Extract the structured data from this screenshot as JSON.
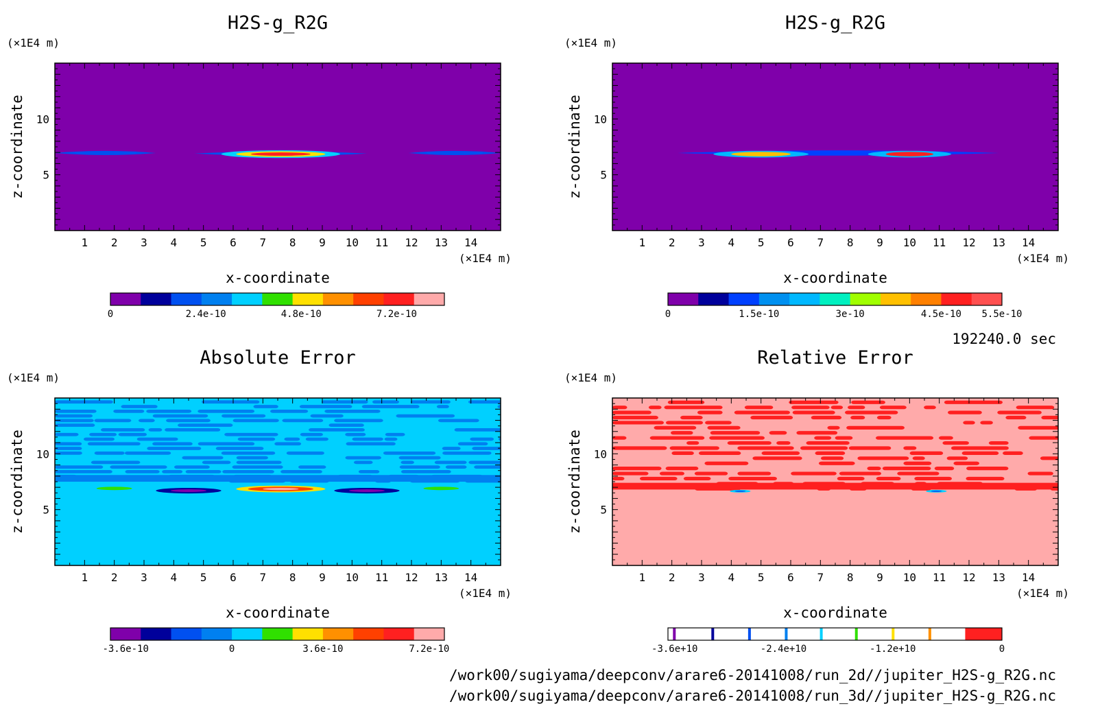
{
  "figure": {
    "time_label": "192240.0 sec",
    "file_paths": [
      "/work00/sugiyama/deepconv/arare6-20141008/run_2d//jupiter_H2S-g_R2G.nc",
      "/work00/sugiyama/deepconv/arare6-20141008/run_3d//jupiter_H2S-g_R2G.nc"
    ]
  },
  "chart_data": [
    {
      "type": "heatmap",
      "title": "H2S-g_R2G",
      "xlabel": "x-coordinate",
      "ylabel": "z-coordinate",
      "x_unit": "(×1E4 m)",
      "y_unit": "(×1E4 m)",
      "xlim": [
        0,
        15
      ],
      "ylim": [
        0,
        15
      ],
      "x_ticks": [
        1,
        2,
        3,
        4,
        5,
        6,
        7,
        8,
        9,
        10,
        11,
        12,
        13,
        14
      ],
      "y_ticks": [
        5,
        10
      ],
      "background": "#7f00aa",
      "colorbar": {
        "colors": [
          "#7f00aa",
          "#00009b",
          "#0050f0",
          "#0080f0",
          "#00d0ff",
          "#30e000",
          "#ffe000",
          "#ff9000",
          "#ff4000",
          "#ff2020",
          "#ffaaaa"
        ],
        "tick_labels": [
          "0",
          "2.4e-10",
          "4.8e-10",
          "7.2e-10"
        ],
        "tick_fractions": [
          0,
          0.2857,
          0.5714,
          0.8571
        ]
      },
      "features": [
        {
          "kind": "band",
          "x": [
            0,
            3.4
          ],
          "z": [
            6.7,
            7.2
          ],
          "color": "#0050f0",
          "level": 1.5e-10
        },
        {
          "kind": "band",
          "x": [
            4.7,
            10.5
          ],
          "z": [
            6.6,
            7.2
          ],
          "color": "#0050f0",
          "level": 1.5e-10
        },
        {
          "kind": "band",
          "x": [
            11.9,
            15
          ],
          "z": [
            6.7,
            7.2
          ],
          "color": "#0050f0",
          "level": 1.5e-10
        },
        {
          "kind": "blob",
          "center": [
            7.6,
            6.85
          ],
          "half_width": [
            2.0,
            0.35
          ],
          "color": "#00d0ff"
        },
        {
          "kind": "blob",
          "center": [
            7.6,
            6.85
          ],
          "half_width": [
            1.5,
            0.25
          ],
          "color": "#ffe000"
        },
        {
          "kind": "blob",
          "center": [
            7.6,
            6.85
          ],
          "half_width": [
            1.0,
            0.15
          ],
          "color": "#ff2020"
        }
      ]
    },
    {
      "type": "heatmap",
      "title": "H2S-g_R2G",
      "xlabel": "x-coordinate",
      "ylabel": "z-coordinate",
      "x_unit": "(×1E4 m)",
      "y_unit": "(×1E4 m)",
      "xlim": [
        0,
        15
      ],
      "ylim": [
        0,
        15
      ],
      "x_ticks": [
        1,
        2,
        3,
        4,
        5,
        6,
        7,
        8,
        9,
        10,
        11,
        12,
        13,
        14
      ],
      "y_ticks": [
        5,
        10
      ],
      "background": "#7f00aa",
      "colorbar": {
        "colors": [
          "#7f00aa",
          "#00009b",
          "#0040ff",
          "#0090f0",
          "#00b8ff",
          "#00f0c0",
          "#a0ff00",
          "#ffc000",
          "#ff8000",
          "#ff2020",
          "#ff5050"
        ],
        "tick_labels": [
          "0",
          "1.5e-10",
          "3e-10",
          "4.5e-10",
          "5.5e-10"
        ],
        "tick_fractions": [
          0,
          0.2727,
          0.5454,
          0.8181,
          1.0
        ]
      },
      "features": [
        {
          "kind": "band",
          "x": [
            2.2,
            13.0
          ],
          "z": [
            6.6,
            7.3
          ],
          "color": "#0040ff",
          "level": 1e-10
        },
        {
          "kind": "blob",
          "center": [
            5.0,
            6.85
          ],
          "half_width": [
            1.6,
            0.3
          ],
          "color": "#00b8ff"
        },
        {
          "kind": "blob",
          "center": [
            5.0,
            6.85
          ],
          "half_width": [
            1.0,
            0.2
          ],
          "color": "#ffc000"
        },
        {
          "kind": "blob",
          "center": [
            10.0,
            6.85
          ],
          "half_width": [
            1.4,
            0.3
          ],
          "color": "#00b8ff"
        },
        {
          "kind": "blob",
          "center": [
            10.0,
            6.85
          ],
          "half_width": [
            0.8,
            0.2
          ],
          "color": "#ff2020"
        }
      ]
    },
    {
      "type": "heatmap",
      "title": "Absolute Error",
      "xlabel": "x-coordinate",
      "ylabel": "z-coordinate",
      "x_unit": "(×1E4 m)",
      "y_unit": "(×1E4 m)",
      "xlim": [
        0,
        15
      ],
      "ylim": [
        0,
        15
      ],
      "x_ticks": [
        1,
        2,
        3,
        4,
        5,
        6,
        7,
        8,
        9,
        10,
        11,
        12,
        13,
        14
      ],
      "y_ticks": [
        5,
        10
      ],
      "background": "#00d0ff",
      "colorbar": {
        "colors": [
          "#7f00aa",
          "#00009b",
          "#0050f0",
          "#0080f0",
          "#00d0ff",
          "#30e000",
          "#ffe000",
          "#ff9000",
          "#ff4000",
          "#ff2020",
          "#ffaaaa"
        ],
        "tick_labels": [
          "-3.6e-10",
          "0",
          "3.6e-10",
          "7.2e-10"
        ],
        "tick_fractions": [
          0.0455,
          0.3636,
          0.6364,
          0.9545
        ]
      },
      "features": [
        {
          "kind": "stripes",
          "z": [
            7.5,
            15
          ],
          "color": "#0080f0"
        },
        {
          "kind": "blob",
          "center": [
            2.0,
            6.9
          ],
          "half_width": [
            0.6,
            0.15
          ],
          "color": "#30e000"
        },
        {
          "kind": "blob",
          "center": [
            13.0,
            6.9
          ],
          "half_width": [
            0.6,
            0.15
          ],
          "color": "#30e000"
        },
        {
          "kind": "blob",
          "center": [
            4.5,
            6.7
          ],
          "half_width": [
            1.1,
            0.25
          ],
          "color": "#00009b"
        },
        {
          "kind": "blob",
          "center": [
            4.5,
            6.7
          ],
          "half_width": [
            0.6,
            0.12
          ],
          "color": "#7f00aa"
        },
        {
          "kind": "blob",
          "center": [
            10.5,
            6.7
          ],
          "half_width": [
            1.1,
            0.25
          ],
          "color": "#00009b"
        },
        {
          "kind": "blob",
          "center": [
            10.5,
            6.7
          ],
          "half_width": [
            0.6,
            0.12
          ],
          "color": "#7f00aa"
        },
        {
          "kind": "blob",
          "center": [
            7.6,
            6.85
          ],
          "half_width": [
            1.5,
            0.3
          ],
          "color": "#ffe000"
        },
        {
          "kind": "blob",
          "center": [
            7.6,
            6.85
          ],
          "half_width": [
            1.1,
            0.2
          ],
          "color": "#ff4000"
        },
        {
          "kind": "blob",
          "center": [
            7.6,
            6.85
          ],
          "half_width": [
            0.6,
            0.1
          ],
          "color": "#ffaaaa"
        }
      ]
    },
    {
      "type": "heatmap",
      "title": "Relative Error",
      "xlabel": "x-coordinate",
      "ylabel": "z-coordinate",
      "x_unit": "(×1E4 m)",
      "y_unit": "(×1E4 m)",
      "xlim": [
        0,
        15
      ],
      "ylim": [
        0,
        15
      ],
      "x_ticks": [
        1,
        2,
        3,
        4,
        5,
        6,
        7,
        8,
        9,
        10,
        11,
        12,
        13,
        14
      ],
      "y_ticks": [
        5,
        10
      ],
      "background": "#ffaaaa",
      "colorbar": {
        "colors": [
          "#7f00aa",
          "#00009b",
          "#0050f0",
          "#0080f0",
          "#00d0ff",
          "#30e000",
          "#ffe000",
          "#ff9000",
          "#ff4000",
          "#ff2020"
        ],
        "line_positions": [
          0.015,
          0.13,
          0.24,
          0.35,
          0.455,
          0.56,
          0.67,
          0.78
        ],
        "tail_fraction": 0.89,
        "tail_color": "#ff2020",
        "tick_labels": [
          "-3.6e+10",
          "-2.4e+10",
          "-1.2e+10",
          "0"
        ],
        "tick_fractions": [
          0.02,
          0.346,
          0.673,
          1.0
        ]
      },
      "features": [
        {
          "kind": "stripes",
          "z": [
            6.8,
            15
          ],
          "color": "#ff2020"
        },
        {
          "kind": "blob",
          "center": [
            4.3,
            6.65
          ],
          "half_width": [
            0.35,
            0.12
          ],
          "color": "#00d0ff"
        },
        {
          "kind": "blob",
          "center": [
            4.3,
            6.65
          ],
          "half_width": [
            0.18,
            0.06
          ],
          "color": "#0050f0"
        },
        {
          "kind": "blob",
          "center": [
            10.9,
            6.65
          ],
          "half_width": [
            0.35,
            0.12
          ],
          "color": "#00d0ff"
        },
        {
          "kind": "blob",
          "center": [
            10.9,
            6.65
          ],
          "half_width": [
            0.18,
            0.06
          ],
          "color": "#0050f0"
        }
      ]
    }
  ]
}
